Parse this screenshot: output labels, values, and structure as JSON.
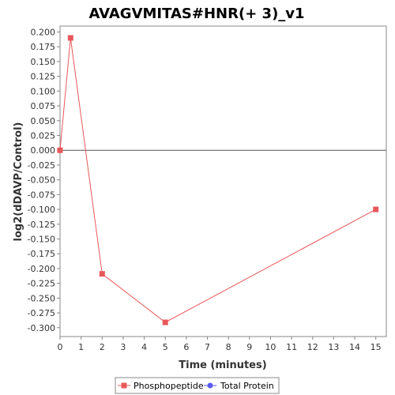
{
  "chart_data": {
    "type": "line",
    "title": "AVAGVMITAS#HNR(+ 3)_v1",
    "xlabel": "Time (minutes)",
    "ylabel": "log2(dDAVP/Control)",
    "xlim": [
      0,
      15.5
    ],
    "ylim": [
      -0.315,
      0.21
    ],
    "x_ticks": [
      0,
      1,
      2,
      3,
      4,
      5,
      6,
      7,
      8,
      9,
      10,
      11,
      12,
      13,
      14,
      15
    ],
    "y_ticks": [
      0.2,
      0.175,
      0.15,
      0.125,
      0.1,
      0.075,
      0.05,
      0.025,
      0.0,
      -0.025,
      -0.05,
      -0.075,
      -0.1,
      -0.125,
      -0.15,
      -0.175,
      -0.2,
      -0.225,
      -0.25,
      -0.275,
      -0.3
    ],
    "y_tick_labels": [
      "0.200",
      "0.175",
      "0.150",
      "0.125",
      "0.100",
      "0.075",
      "0.050",
      "0.025",
      "0.000",
      "-0.025",
      "-0.050",
      "-0.075",
      "-0.100",
      "-0.125",
      "-0.150",
      "-0.175",
      "-0.200",
      "-0.225",
      "-0.250",
      "-0.275",
      "-0.300"
    ],
    "grid": false,
    "zero_line": true,
    "legend_position": "bottom",
    "series": [
      {
        "name": "Phosphopeptide",
        "color": "#e8585a",
        "marker": "square",
        "x": [
          0,
          0.5,
          2,
          5,
          15
        ],
        "y": [
          0.0,
          0.19,
          -0.209,
          -0.291,
          -0.1
        ]
      },
      {
        "name": "Total Protein",
        "color": "#5b5bf0",
        "marker": "circle",
        "x": [],
        "y": []
      }
    ]
  }
}
